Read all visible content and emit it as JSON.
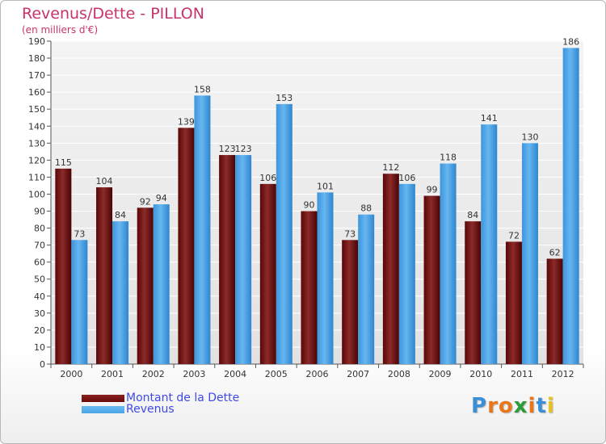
{
  "header": {
    "title": "Revenus/Dette - PILLON",
    "subtitle": "(en milliers d'€)"
  },
  "colors": {
    "dette": "#6b0a0a",
    "revenus": "#4aa5e8",
    "title": "#c8336b",
    "legend_text": "#3f49e8"
  },
  "chart_data": {
    "type": "bar",
    "title": "Revenus/Dette - PILLON",
    "ylabel": "(en milliers d'€)",
    "xlabel": "",
    "ylim": [
      0,
      190
    ],
    "ytick_step": 10,
    "grid": true,
    "legend_position": "bottom-left",
    "categories": [
      "2000",
      "2001",
      "2002",
      "2003",
      "2004",
      "2005",
      "2006",
      "2007",
      "2008",
      "2009",
      "2010",
      "2011",
      "2012"
    ],
    "series": [
      {
        "name": "Montant de la Dette",
        "values": [
          115,
          104,
          92,
          139,
          123,
          106,
          90,
          73,
          112,
          99,
          84,
          72,
          62
        ]
      },
      {
        "name": "Revenus",
        "values": [
          73,
          84,
          94,
          158,
          123,
          153,
          101,
          88,
          106,
          118,
          141,
          130,
          186
        ]
      }
    ]
  },
  "legend": {
    "items": [
      {
        "label": "Montant de la Dette",
        "color": "#6b0a0a"
      },
      {
        "label": "Revenus",
        "color": "#4aa5e8"
      }
    ]
  },
  "logo": {
    "text": "Proxiti",
    "letter_colors": [
      "#3a8fd6",
      "#e8771c",
      "#e8771c",
      "#2a9d3a",
      "#e8771c",
      "#3a8fd6",
      "#e8c21c"
    ]
  }
}
